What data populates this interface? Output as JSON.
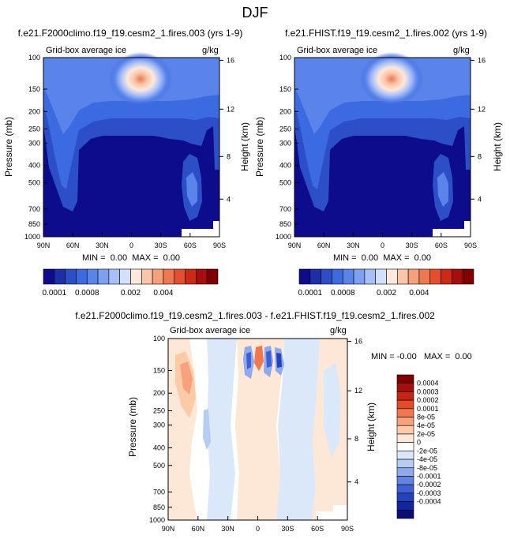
{
  "page_title": "DJF",
  "chart_data": [
    {
      "type": "heatmap",
      "title": "f.e21.F2000climo.f19_f19.cesm2_1.fires.003 (yrs 1-9)",
      "left_string": "Grid-box average ice",
      "right_string": "g/kg",
      "ylabel": "Pressure (mb)",
      "y2label": "Height (km)",
      "x_ticks": [
        "90N",
        "60N",
        "30N",
        "0",
        "30S",
        "60S",
        "90S"
      ],
      "y_ticks": [
        "100",
        "150",
        "200",
        "250",
        "300",
        "400",
        "500",
        "700",
        "850",
        "1000"
      ],
      "y2_ticks": [
        "16",
        "12",
        "8",
        "4"
      ],
      "min_max_text": "MIN =  0.00  MAX =  0.00",
      "colorbar_labels": [
        "0.0001",
        "0.0008",
        "0.002",
        "0.004"
      ]
    },
    {
      "type": "heatmap",
      "title": "f.e21.FHIST.f19_f19.cesm2_1.fires.002 (yrs 1-9)",
      "left_string": "Grid-box average ice",
      "right_string": "g/kg",
      "ylabel": "Pressure (mb)",
      "y2label": "Height (km)",
      "x_ticks": [
        "90N",
        "60N",
        "30N",
        "0",
        "30S",
        "60S",
        "90S"
      ],
      "y_ticks": [
        "100",
        "150",
        "200",
        "250",
        "300",
        "400",
        "500",
        "700",
        "850",
        "1000"
      ],
      "y2_ticks": [
        "16",
        "12",
        "8",
        "4"
      ],
      "min_max_text": "MIN =  0.00  MAX =  0.00",
      "colorbar_labels": [
        "0.0001",
        "0.0008",
        "0.002",
        "0.004"
      ]
    },
    {
      "type": "heatmap",
      "title": "f.e21.F2000climo.f19_f19.cesm2_1.fires.003 - f.e21.FHIST.f19_f19.cesm2_1.fires.002",
      "left_string": "Grid-box average ice",
      "right_string": "g/kg",
      "ylabel": "Pressure (mb)",
      "y2label": "Height (km)",
      "x_ticks": [
        "90N",
        "60N",
        "30N",
        "0",
        "30S",
        "60S",
        "90S"
      ],
      "y_ticks": [
        "100",
        "150",
        "200",
        "250",
        "300",
        "400",
        "500",
        "700",
        "850",
        "1000"
      ],
      "y2_ticks": [
        "16",
        "12",
        "8",
        "4"
      ],
      "min_max_text": "MIN = -0.00   MAX =  0.00",
      "colorbar_labels": [
        "0.0004",
        "0.0003",
        "0.0002",
        "0.0001",
        "8e-05",
        "4e-05",
        "2e-05",
        "0",
        "-2e-05",
        "-4e-05",
        "-8e-05",
        "-0.0001",
        "-0.0002",
        "-0.0003",
        "-0.0004"
      ]
    }
  ],
  "colors": {
    "abs_colorbar": [
      "#0c0c8c",
      "#1c2fa6",
      "#2c4fc8",
      "#3c6ae0",
      "#5a84ea",
      "#7ea0f2",
      "#a8c0f8",
      "#d2e0fc",
      "#fde8dc",
      "#f9c6aa",
      "#f4a07a",
      "#ee7850",
      "#e4502e",
      "#cc2a14",
      "#a80c0c",
      "#800000"
    ],
    "diff_colorbar": [
      "#800000",
      "#a30e0e",
      "#c72513",
      "#e34b2b",
      "#f0784f",
      "#f7a27c",
      "#fbcba8",
      "#fde7d6",
      "#ffffff",
      "#dbe8fa",
      "#b6ccf3",
      "#8ea9ec",
      "#6283e2",
      "#3e5fd6",
      "#2442bb",
      "#11269a",
      "#0a0c7a"
    ]
  }
}
